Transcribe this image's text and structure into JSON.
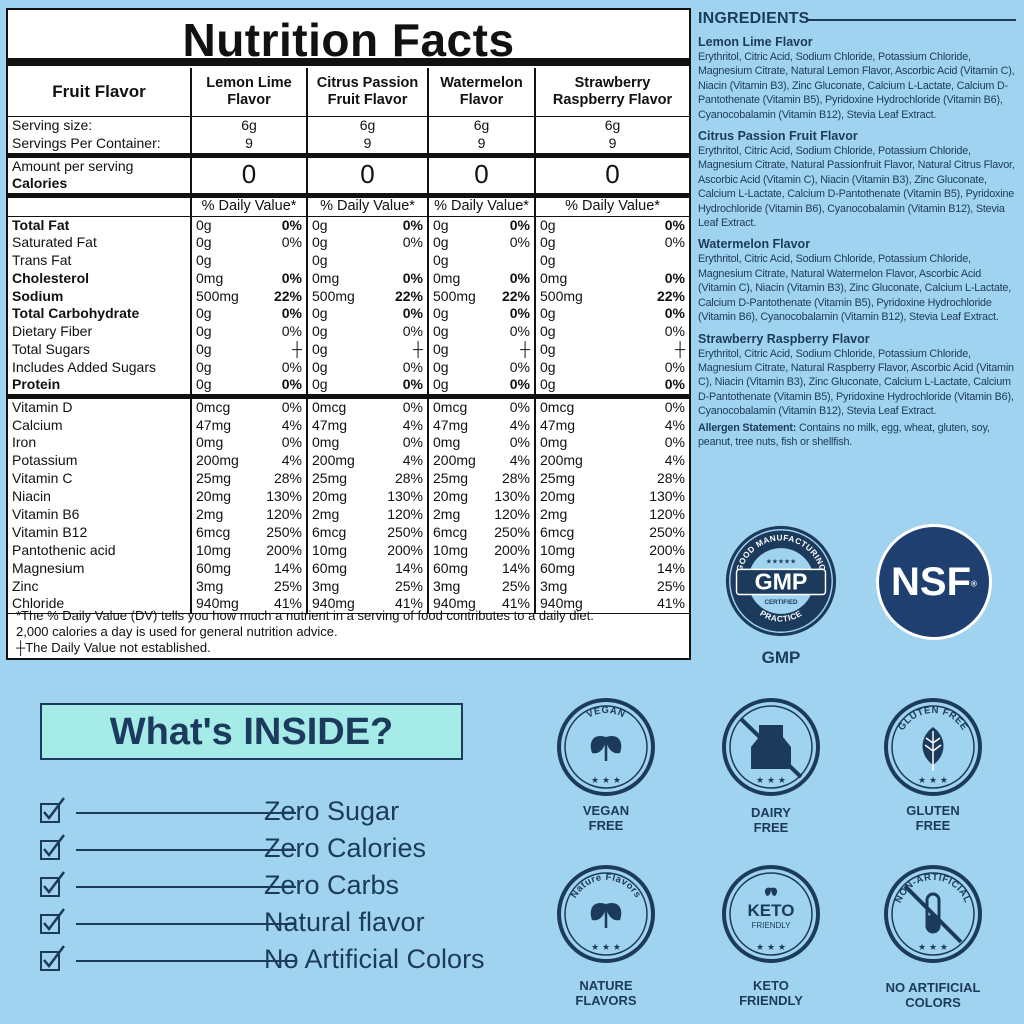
{
  "nutrition": {
    "title": "Nutrition Facts",
    "fruit_flavor_label": "Fruit Flavor",
    "flavors": [
      "Lemon Lime Flavor",
      "Citrus Passion Fruit Flavor",
      "Watermelon Flavor",
      "Strawberry Raspberry Flavor"
    ],
    "serving_size_label": "Serving size:",
    "serving_size": "6g",
    "servings_label": "Servings Per Container:",
    "servings": "9",
    "amount_label": "Amount per serving",
    "calories_label": "Calories",
    "calories": "0",
    "dv_header": "% Daily Value*",
    "nutrients": [
      {
        "name": "Total Fat",
        "amount": "0g",
        "dv": "0%",
        "bold": true
      },
      {
        "name": "Saturated Fat",
        "amount": "0g",
        "dv": "0%"
      },
      {
        "name": "Trans Fat",
        "amount": "0g",
        "dv": ""
      },
      {
        "name": "Cholesterol",
        "amount": "0mg",
        "dv": "0%",
        "bold": true
      },
      {
        "name": "Sodium",
        "amount": "500mg",
        "dv": "22%",
        "bold": true
      },
      {
        "name": "Total Carbohydrate",
        "amount": "0g",
        "dv": "0%",
        "bold": true
      },
      {
        "name": "Dietary Fiber",
        "amount": "0g",
        "dv": "0%"
      },
      {
        "name": "Total Sugars",
        "amount": "0g",
        "dv": "┼"
      },
      {
        "name": "Includes Added Sugars",
        "amount": "0g",
        "dv": "0%"
      },
      {
        "name": "Protein",
        "amount": "0g",
        "dv": "0%",
        "bold": true
      }
    ],
    "vitamins": [
      {
        "name": "Vitamin D",
        "amount": "0mcg",
        "dv": "0%"
      },
      {
        "name": "Calcium",
        "amount": "47mg",
        "dv": "4%"
      },
      {
        "name": "Iron",
        "amount": "0mg",
        "dv": "0%"
      },
      {
        "name": "Potassium",
        "amount": "200mg",
        "dv": "4%"
      },
      {
        "name": "Vitamin C",
        "amount": "25mg",
        "dv": "28%"
      },
      {
        "name": "Niacin",
        "amount": "20mg",
        "dv": "130%"
      },
      {
        "name": "Vitamin B6",
        "amount": "2mg",
        "dv": "120%"
      },
      {
        "name": "Vitamin B12",
        "amount": "6mcg",
        "dv": "250%"
      },
      {
        "name": "Pantothenic acid",
        "amount": "10mg",
        "dv": "200%"
      },
      {
        "name": "Magnesium",
        "amount": "60mg",
        "dv": "14%"
      },
      {
        "name": "Zinc",
        "amount": "3mg",
        "dv": "25%"
      },
      {
        "name": "Chloride",
        "amount": "940mg",
        "dv": "41%"
      }
    ],
    "footnote_1": "*The % Daily Value (DV) tells you how much a nutrient in a serving of food contributes to a daily diet.",
    "footnote_2": "2,000 calories a day is used for general nutrition advice.",
    "footnote_3": "┼The Daily Value not established."
  },
  "ingredients": {
    "title": "INGREDIENTS",
    "items": [
      {
        "flavor": "Lemon Lime Flavor",
        "text": "Erythritol, Citric Acid, Sodium Chloride, Potassium Chloride, Magnesium Citrate, Natural Lemon Flavor, Ascorbic Acid (Vitamin C), Niacin (Vitamin B3), Zinc Gluconate, Calcium L-Lactate, Calcium D-Pantothenate (Vitamin B5), Pyridoxine Hydrochloride (Vitamin B6), Cyanocobalamin (Vitamin B12), Stevia Leaf Extract."
      },
      {
        "flavor": "Citrus Passion Fruit Flavor",
        "text": "Erythritol, Citric Acid, Sodium Chloride, Potassium Chloride, Magnesium Citrate, Natural Passionfruit Flavor, Natural Citrus Flavor, Ascorbic Acid (Vitamin C), Niacin (Vitamin B3), Zinc Gluconate, Calcium L-Lactate, Calcium D-Pantothenate (Vitamin B5), Pyridoxine Hydrochloride (Vitamin B6), Cyanocobalamin (Vitamin B12), Stevia Leaf Extract."
      },
      {
        "flavor": "Watermelon Flavor",
        "text": "Erythritol, Citric Acid, Sodium Chloride, Potassium Chloride, Magnesium Citrate, Natural Watermelon Flavor, Ascorbic Acid (Vitamin C), Niacin (Vitamin B3), Zinc Gluconate, Calcium L-Lactate, Calcium D-Pantothenate (Vitamin B5), Pyridoxine Hydrochloride (Vitamin B6), Cyanocobalamin (Vitamin B12), Stevia Leaf Extract."
      },
      {
        "flavor": "Strawberry Raspberry Flavor",
        "text": "Erythritol, Citric Acid, Sodium Chloride, Potassium Chloride, Magnesium Citrate, Natural Raspberry Flavor, Ascorbic Acid (Vitamin C), Niacin (Vitamin B3), Zinc Gluconate, Calcium L-Lactate, Calcium D-Pantothenate (Vitamin B5), Pyridoxine Hydrochloride (Vitamin B6), Cyanocobalamin (Vitamin B12), Stevia Leaf Extract."
      }
    ],
    "allergen_label": "Allergen Statement:",
    "allergen_text": "Contains no milk, egg, wheat, gluten, soy, peanut, tree nuts, fish or shellfish."
  },
  "certifications": {
    "gmp_ring_top": "GOOD MANUFACTURING",
    "gmp_ring_bottom": "PRACTICE",
    "gmp_center": "GMP",
    "gmp_certified": "CERTIFIED",
    "gmp_label": "GMP",
    "nsf": "NSF",
    "nsf_mark": "®"
  },
  "whats_inside": {
    "title": "What's INSIDE?",
    "items": [
      "Zero Sugar",
      "Zero Calories",
      "Zero Carbs",
      "Natural flavor",
      "No Artificial Colors"
    ]
  },
  "badges": [
    {
      "ring": "VEGAN",
      "label_1": "VEGAN",
      "label_2": "FREE",
      "icon": "leaf-icon"
    },
    {
      "ring": "",
      "label_1": "DAIRY",
      "label_2": "FREE",
      "icon": "milk-carton-icon"
    },
    {
      "ring": "GLUTEN FREE",
      "label_1": "GLUTEN",
      "label_2": "FREE",
      "icon": "wheat-leaf-icon"
    },
    {
      "ring": "Nature Flavors",
      "label_1": "NATURE",
      "label_2": "FLAVORS",
      "icon": "leaf-icon"
    },
    {
      "ring": "",
      "center_1": "KETO",
      "center_2": "FRIENDLY",
      "label_1": "KETO",
      "label_2": "FRIENDLY",
      "icon": "keto-icon"
    },
    {
      "ring": "NON-ARTIFICIAL",
      "label_1": "NO ARTIFICIAL",
      "label_2": "COLORS",
      "icon": "test-tube-icon"
    }
  ],
  "colors": {
    "background": "#9fd3ef",
    "navy": "#1c3a5c",
    "nsf_blue": "#1f3f70",
    "inside_box": "#a5ebe8"
  }
}
